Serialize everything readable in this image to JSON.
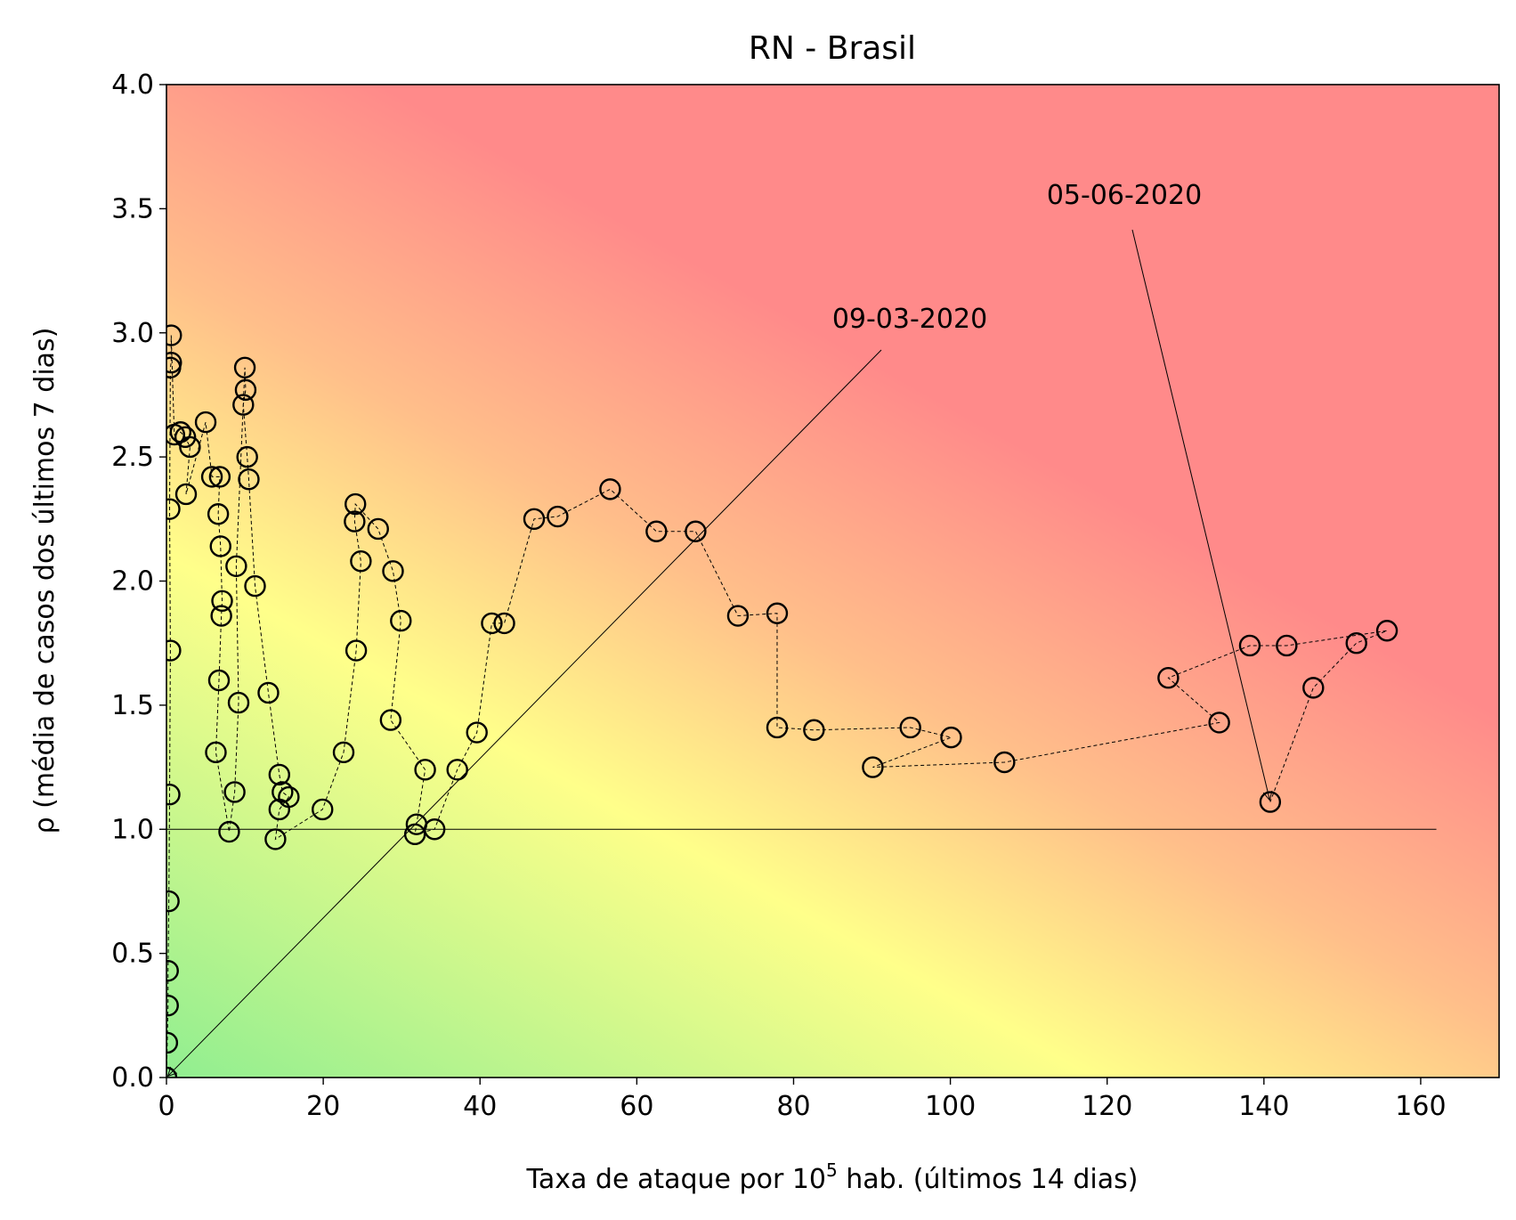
{
  "chart_data": {
    "type": "scatter",
    "title": "RN - Brasil",
    "xlabel_main": "Taxa de ataque por 10",
    "xlabel_sup": "5",
    "xlabel_rest": " hab. (últimos 14 dias)",
    "ylabel": "ρ (média de casos dos últimos 7 dias)",
    "xlim": [
      0,
      170
    ],
    "ylim": [
      0,
      4.0
    ],
    "xticks": [
      0,
      20,
      40,
      60,
      80,
      100,
      120,
      140,
      160
    ],
    "xtick_labels": [
      "0",
      "20",
      "40",
      "60",
      "80",
      "100",
      "120",
      "140",
      "160"
    ],
    "yticks": [
      0,
      0.5,
      1.0,
      1.5,
      2.0,
      2.5,
      3.0,
      3.5,
      4.0
    ],
    "ytick_labels": [
      "0.0",
      "0.5",
      "1.0",
      "1.5",
      "2.0",
      "2.5",
      "3.0",
      "3.5",
      "4.0"
    ],
    "reference_line_y": 1.0,
    "reference_line_x_end": 162,
    "background": "risk gradient: green (low) - yellow - red (high)",
    "colors": {
      "green": "#90ee90",
      "yellow": "#ffff8a",
      "orange": "#ffbf8a",
      "red": "#ff8a8a",
      "marker": "#000000"
    },
    "points": [
      [
        0.0,
        0.0
      ],
      [
        0.1,
        0.14
      ],
      [
        0.2,
        0.29
      ],
      [
        0.2,
        0.43
      ],
      [
        0.3,
        0.71
      ],
      [
        0.4,
        1.14
      ],
      [
        0.5,
        1.72
      ],
      [
        0.4,
        2.29
      ],
      [
        0.5,
        2.86
      ],
      [
        0.6,
        2.88
      ],
      [
        0.6,
        2.99
      ],
      [
        1.0,
        2.59
      ],
      [
        1.8,
        2.6
      ],
      [
        2.4,
        2.58
      ],
      [
        3.0,
        2.54
      ],
      [
        2.5,
        2.35
      ],
      [
        5.0,
        2.64
      ],
      [
        5.8,
        2.42
      ],
      [
        6.8,
        2.42
      ],
      [
        6.6,
        2.27
      ],
      [
        6.9,
        2.14
      ],
      [
        7.1,
        1.92
      ],
      [
        7.0,
        1.86
      ],
      [
        6.7,
        1.6
      ],
      [
        6.3,
        1.31
      ],
      [
        8.0,
        0.99
      ],
      [
        8.7,
        1.15
      ],
      [
        9.2,
        1.51
      ],
      [
        8.9,
        2.06
      ],
      [
        10.0,
        2.86
      ],
      [
        10.1,
        2.77
      ],
      [
        9.8,
        2.71
      ],
      [
        10.3,
        2.5
      ],
      [
        10.5,
        2.41
      ],
      [
        11.3,
        1.98
      ],
      [
        13.0,
        1.55
      ],
      [
        14.4,
        1.22
      ],
      [
        14.8,
        1.15
      ],
      [
        15.6,
        1.13
      ],
      [
        14.4,
        1.08
      ],
      [
        13.9,
        0.96
      ],
      [
        19.9,
        1.08
      ],
      [
        22.6,
        1.31
      ],
      [
        24.2,
        1.72
      ],
      [
        24.8,
        2.08
      ],
      [
        24.0,
        2.24
      ],
      [
        24.1,
        2.31
      ],
      [
        27.0,
        2.21
      ],
      [
        28.9,
        2.04
      ],
      [
        29.9,
        1.84
      ],
      [
        28.6,
        1.44
      ],
      [
        33.0,
        1.24
      ],
      [
        31.9,
        1.02
      ],
      [
        31.7,
        0.98
      ],
      [
        34.2,
        1.0
      ],
      [
        37.1,
        1.24
      ],
      [
        39.6,
        1.39
      ],
      [
        41.5,
        1.83
      ],
      [
        43.1,
        1.83
      ],
      [
        46.9,
        2.25
      ],
      [
        49.9,
        2.26
      ],
      [
        56.6,
        2.37
      ],
      [
        62.5,
        2.2
      ],
      [
        67.5,
        2.2
      ],
      [
        72.9,
        1.86
      ],
      [
        77.9,
        1.87
      ],
      [
        77.9,
        1.41
      ],
      [
        82.6,
        1.4
      ],
      [
        94.9,
        1.41
      ],
      [
        100.1,
        1.37
      ],
      [
        90.1,
        1.25
      ],
      [
        106.9,
        1.27
      ],
      [
        134.3,
        1.43
      ],
      [
        127.8,
        1.61
      ],
      [
        138.2,
        1.74
      ],
      [
        142.9,
        1.74
      ],
      [
        155.7,
        1.8
      ],
      [
        151.8,
        1.75
      ],
      [
        146.3,
        1.57
      ],
      [
        140.8,
        1.11
      ]
    ],
    "annotations": [
      {
        "text": "09-03-2020",
        "x": 0.0,
        "y": 0.0
      },
      {
        "text": "05-06-2020",
        "x": 140.8,
        "y": 1.11
      }
    ]
  }
}
